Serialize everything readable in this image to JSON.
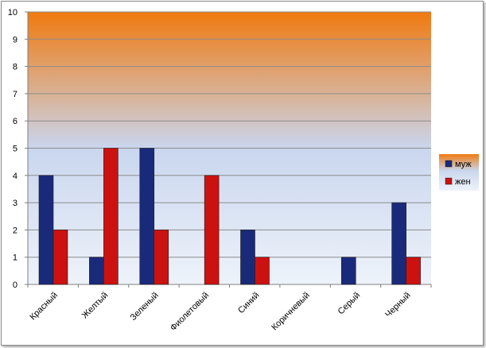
{
  "chart_data": {
    "type": "bar",
    "categories": [
      "Красный",
      "Желтый",
      "Зеленый",
      "Фиолетовый",
      "Синий",
      "Коричневый",
      "Серый",
      "Черный"
    ],
    "series": [
      {
        "name": "муж",
        "values": [
          4,
          1,
          5,
          0,
          2,
          0,
          1,
          3
        ],
        "color": "#1a2a7a"
      },
      {
        "name": "жен",
        "values": [
          2,
          5,
          2,
          4,
          1,
          0,
          0,
          1
        ],
        "color": "#cc1111"
      }
    ],
    "ylim": [
      0,
      10
    ],
    "yticks": [
      "0",
      "1",
      "2",
      "3",
      "4",
      "5",
      "6",
      "7",
      "8",
      "9",
      "10"
    ],
    "title": "",
    "xlabel": "",
    "ylabel": "",
    "grid": true,
    "legend_position": "right",
    "plot_background": {
      "top": "#f07a10",
      "middle": "#c9d6ee",
      "bottom": "#eef3fa"
    }
  }
}
